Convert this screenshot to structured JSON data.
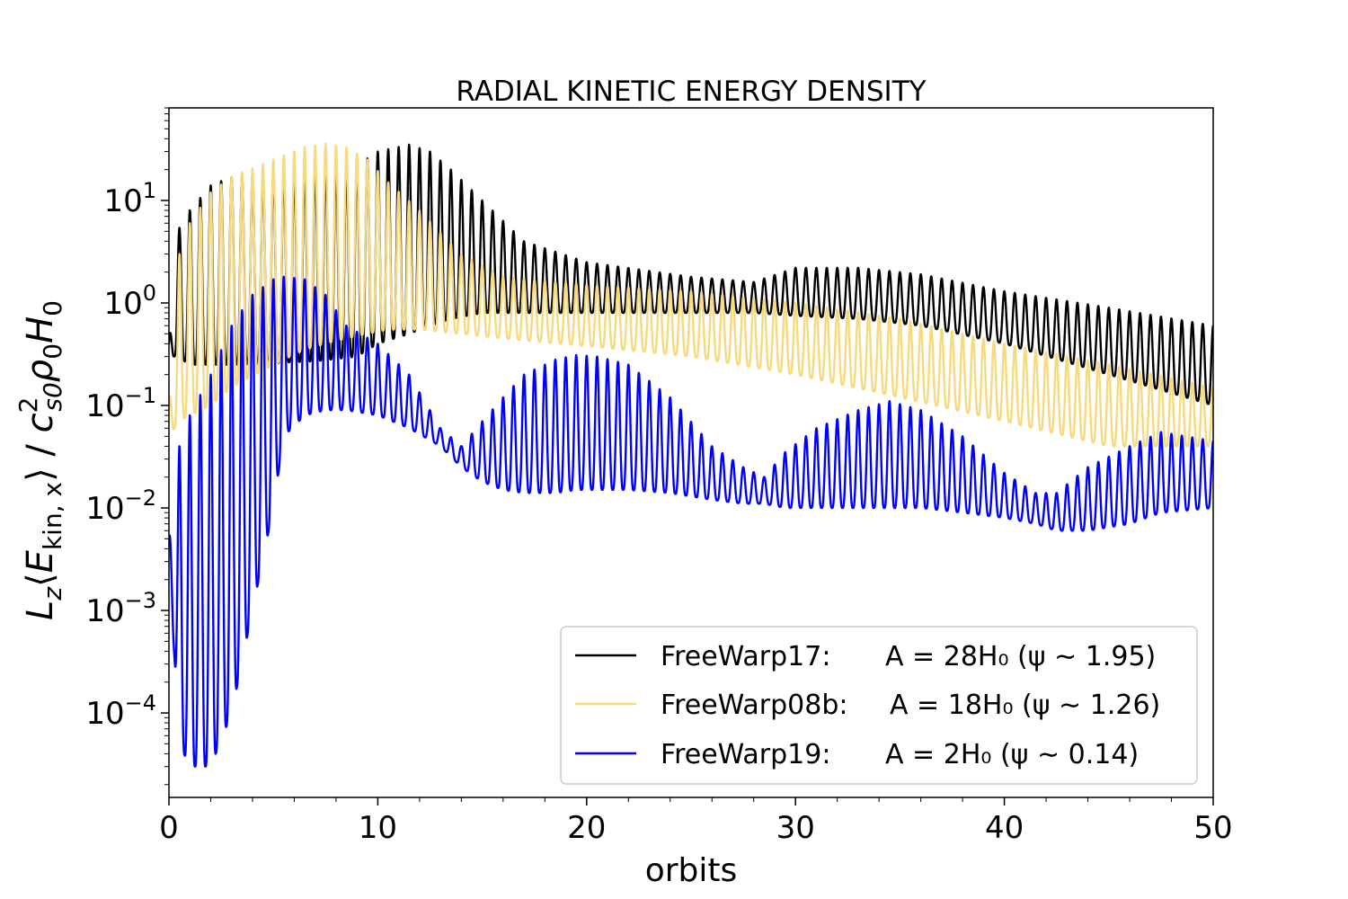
{
  "chart_data": {
    "type": "line",
    "title": "RADIAL KINETIC ENERGY DENSITY",
    "xlabel": "orbits",
    "ylabel": "L_z⟨E_kin,x⟩ / c²_s0 ρ_0 H_0",
    "ylabel_parts": {
      "lz": "L",
      "lz_sub": "z",
      "open": "⟨",
      "e": "E",
      "e_sub": "kin, x",
      "close": "⟩ / ",
      "c": "c",
      "c_sup": "2",
      "c_sub": "s0",
      "rho": "ρ",
      "rho_sub": "0",
      "h": "H",
      "h_sub": "0"
    },
    "xlim": [
      0,
      50
    ],
    "ylog": true,
    "ylim": [
      1.5e-05,
      80
    ],
    "xticks": [
      0,
      10,
      20,
      30,
      40,
      50
    ],
    "xtick_labels": [
      "0",
      "10",
      "20",
      "30",
      "40",
      "50"
    ],
    "yticks": [
      {
        "value": 0.0001,
        "base": "10",
        "exp": "−4"
      },
      {
        "value": 0.001,
        "base": "10",
        "exp": "−3"
      },
      {
        "value": 0.01,
        "base": "10",
        "exp": "−2"
      },
      {
        "value": 0.1,
        "base": "10",
        "exp": "−1"
      },
      {
        "value": 1,
        "base": "10",
        "exp": "0"
      },
      {
        "value": 10,
        "base": "10",
        "exp": "1"
      }
    ],
    "period_orbits": 0.5,
    "series": [
      {
        "name": "FreeWarp17",
        "label": "FreeWarp17:",
        "formula": "A = 28H₀ (ψ ∼ 1.95)",
        "color": "#000000",
        "envelope": {
          "x": [
            0,
            0.4,
            1,
            2,
            3,
            5,
            7,
            9,
            10,
            11.5,
            12.5,
            13.5,
            15,
            17,
            20,
            25,
            28,
            30,
            33,
            36,
            40,
            45,
            50
          ],
          "max": [
            0.4,
            5,
            8,
            14,
            17,
            19,
            21,
            22,
            30,
            35,
            30,
            20,
            10,
            4,
            2.5,
            1.8,
            1.6,
            2.2,
            2.2,
            1.9,
            1.3,
            0.9,
            0.6
          ],
          "min": [
            0.3,
            0.3,
            0.25,
            0.25,
            0.25,
            0.26,
            0.27,
            0.3,
            0.4,
            0.5,
            0.6,
            0.7,
            0.8,
            0.8,
            0.8,
            0.8,
            0.8,
            0.75,
            0.7,
            0.6,
            0.4,
            0.2,
            0.1
          ]
        }
      },
      {
        "name": "FreeWarp08b",
        "label": "FreeWarp08b:",
        "formula": "A = 18H₀ (ψ ∼ 1.26)",
        "color": "#f7d97e",
        "envelope": {
          "x": [
            0,
            0.5,
            1,
            2,
            3,
            5,
            6.5,
            7.5,
            8.5,
            9.5,
            10.5,
            12,
            14,
            16,
            20,
            25,
            30,
            35,
            40,
            45,
            50
          ],
          "max": [
            0.1,
            3,
            6,
            12,
            17,
            25,
            33,
            36,
            33,
            25,
            15,
            8,
            3,
            1.8,
            1.5,
            1.3,
            1.0,
            0.7,
            0.4,
            0.25,
            0.15
          ],
          "min": [
            0.05,
            0.07,
            0.08,
            0.1,
            0.15,
            0.25,
            0.35,
            0.4,
            0.45,
            0.5,
            0.55,
            0.55,
            0.5,
            0.45,
            0.38,
            0.3,
            0.2,
            0.12,
            0.07,
            0.04,
            0.04
          ]
        }
      },
      {
        "name": "FreeWarp19",
        "label": "FreeWarp19:",
        "formula": "A = 2H₀ (ψ ∼ 0.14)",
        "color": "#0000ff",
        "envelope": {
          "x": [
            0,
            0.5,
            1,
            2,
            3,
            4,
            5,
            5.5,
            6.5,
            7.5,
            8.5,
            10,
            11.5,
            13,
            14,
            15,
            16,
            17,
            18.5,
            19.5,
            20.5,
            22,
            24,
            26,
            27.5,
            28.5,
            29.5,
            31,
            33,
            34.5,
            36,
            38,
            40,
            41.5,
            42.5,
            44,
            46,
            47.5,
            50
          ],
          "max": [
            0.005,
            0.04,
            0.08,
            0.2,
            0.6,
            1.2,
            1.7,
            1.8,
            1.7,
            1.2,
            0.6,
            0.4,
            0.2,
            0.06,
            0.04,
            0.07,
            0.12,
            0.2,
            0.28,
            0.31,
            0.3,
            0.25,
            0.12,
            0.04,
            0.025,
            0.02,
            0.035,
            0.06,
            0.09,
            0.11,
            0.09,
            0.05,
            0.022,
            0.014,
            0.014,
            0.025,
            0.04,
            0.055,
            0.045
          ],
          "min": [
            0.003,
            5e-05,
            3e-05,
            3e-05,
            0.0001,
            0.001,
            0.01,
            0.05,
            0.08,
            0.09,
            0.09,
            0.08,
            0.06,
            0.04,
            0.025,
            0.018,
            0.015,
            0.014,
            0.014,
            0.015,
            0.015,
            0.015,
            0.014,
            0.012,
            0.011,
            0.011,
            0.01,
            0.01,
            0.01,
            0.01,
            0.01,
            0.009,
            0.008,
            0.007,
            0.006,
            0.006,
            0.007,
            0.009,
            0.01
          ]
        }
      }
    ]
  }
}
